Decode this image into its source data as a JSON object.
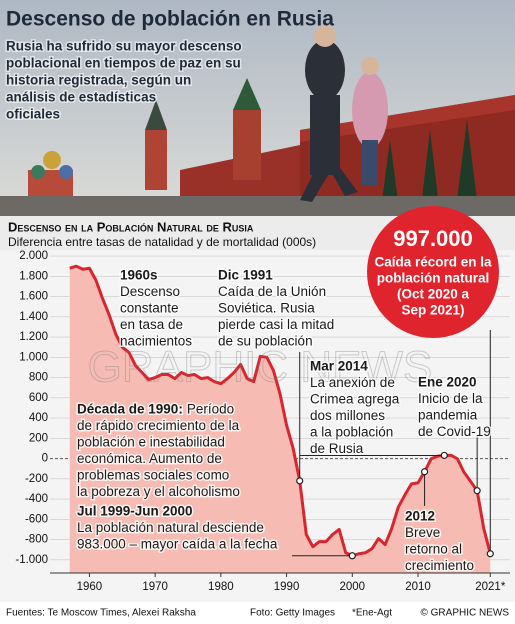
{
  "header": {
    "title": "Descenso de población en Rusia",
    "subtitle_lines": [
      "Rusia ha sufrido su mayor descenso",
      "poblacional en tiempos de paz en su",
      "historia registrada, según un",
      "análisis de estadísticas",
      "oficiales"
    ]
  },
  "chart_data": {
    "type": "area",
    "title": "Descenso en la Población Natural de Rusia",
    "subtitle": "Diferencia entre tasas de natalidad y de mortalidad (000s)",
    "x": [
      1957,
      1958,
      1959,
      1960,
      1961,
      1962,
      1963,
      1964,
      1965,
      1966,
      1967,
      1968,
      1969,
      1970,
      1971,
      1972,
      1973,
      1974,
      1975,
      1976,
      1977,
      1978,
      1979,
      1980,
      1981,
      1982,
      1983,
      1984,
      1985,
      1986,
      1987,
      1988,
      1989,
      1990,
      1991,
      1992,
      1993,
      1994,
      1995,
      1996,
      1997,
      1998,
      1999,
      2000,
      2001,
      2002,
      2003,
      2004,
      2005,
      2006,
      2007,
      2008,
      2009,
      2010,
      2011,
      2012,
      2013,
      2014,
      2015,
      2016,
      2017,
      2018,
      2019,
      2020,
      2021
    ],
    "values": [
      1880,
      1900,
      1870,
      1880,
      1760,
      1580,
      1420,
      1230,
      1100,
      1050,
      920,
      850,
      780,
      800,
      830,
      830,
      790,
      850,
      820,
      830,
      790,
      800,
      760,
      740,
      790,
      850,
      930,
      790,
      760,
      1010,
      1000,
      870,
      640,
      330,
      100,
      -220,
      -750,
      -870,
      -820,
      -820,
      -750,
      -700,
      -930,
      -960,
      -940,
      -930,
      -890,
      -790,
      -850,
      -690,
      -480,
      -360,
      -250,
      -240,
      -130,
      -2,
      24,
      31,
      33,
      -2,
      -135,
      -225,
      -317,
      -688,
      -940
    ],
    "color": "#d7262e",
    "fill_color": "#f6bcb4",
    "xlim": [
      1954,
      2024
    ],
    "ylim": [
      -1130,
      2060
    ],
    "xticks": [
      1960,
      1970,
      1980,
      1990,
      2000,
      2010,
      {
        "value": 2021,
        "label": "2021*"
      }
    ],
    "yticks": [
      {
        "value": 2000,
        "label": "2.000"
      },
      {
        "value": 1800,
        "label": "1.800"
      },
      {
        "value": 1600,
        "label": "1.600"
      },
      {
        "value": 1400,
        "label": "1.400"
      },
      {
        "value": 1200,
        "label": "1.200"
      },
      {
        "value": 1000,
        "label": "1.000"
      },
      800,
      600,
      400,
      200,
      0,
      -200,
      -400,
      -600,
      -800,
      {
        "value": -1000,
        "label": "-1.000"
      }
    ],
    "grid": true,
    "callout": {
      "title": "997.000",
      "lines": [
        "Caída récord en la",
        "población natural",
        "(Oct 2020 a",
        "Sep 2021)"
      ],
      "color": "#e0242e"
    },
    "annotations": [
      {
        "title": "1960s",
        "lines": [
          "Descenso",
          "constante",
          "en tasa de",
          "nacimientos"
        ]
      },
      {
        "title": "Dic 1991",
        "lines": [
          "Caída de la Unión",
          "Soviética. Rusia",
          "pierde casi la mitad",
          "de su población"
        ]
      },
      {
        "title": "Mar 2014",
        "lines": [
          "La anexión de",
          "Crimea agrega",
          "dos millones",
          "a la población",
          "de Rusia"
        ]
      },
      {
        "title": "Ene 2020",
        "lines": [
          "Inicio de la",
          "pandemia",
          "de Covid-19"
        ]
      },
      {
        "title": "Década de 1990:",
        "lines": [
          "Período",
          "de rápido crecimiento de la",
          "población e inestabilidad",
          "económica. Aumento de",
          "problemas sociales como",
          "la pobreza y el alcoholismo"
        ]
      },
      {
        "title": "Jul 1999-Jun 2000",
        "lines": [
          "La población natural desciende",
          "983.000 – mayor caída a la fecha"
        ]
      },
      {
        "title": "2012",
        "lines": [
          "Breve",
          "retorno al",
          "crecimiento"
        ]
      }
    ],
    "watermark": "GRAPHIC NEWS"
  },
  "footer": {
    "source": "Fuentes: Te Moscow Times, Alexei Raksha",
    "photo": "Foto: Getty Images",
    "note": "*Ene-Agt",
    "credit": "© GRAPHIC NEWS"
  }
}
